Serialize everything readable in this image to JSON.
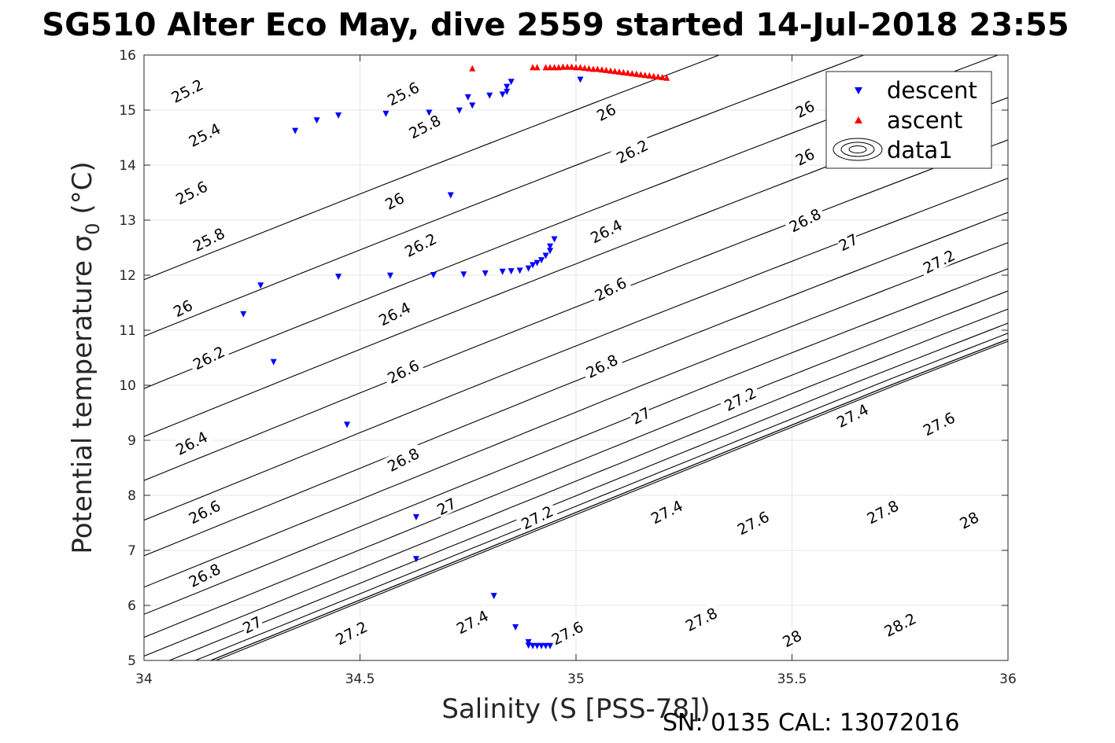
{
  "chart_data": {
    "type": "scatter",
    "title": "SG510 Alter Eco May, dive 2559 started 14-Jul-2018 23:55",
    "xlabel": "Salinity (S [PSS-78])",
    "ylabel_main": "Potential temperature σ",
    "ylabel_sub": "0",
    "ylabel_unit": " (°C)",
    "xlim": [
      34,
      36
    ],
    "ylim": [
      5,
      16
    ],
    "grid": true,
    "legend_position": "top-right",
    "x_tick_labels": [
      "34",
      "34.5",
      "35",
      "35.5",
      "36"
    ],
    "y_tick_labels": [
      "5",
      "6",
      "7",
      "8",
      "9",
      "10",
      "11",
      "12",
      "13",
      "14",
      "15",
      "16"
    ],
    "footer": "SN: 0135  CAL: 13072016",
    "colors": {
      "descent": "#0000ff",
      "ascent": "#ff0000",
      "contour": "#000000",
      "grid": "#e6e6e6"
    },
    "series": [
      {
        "name": "descent",
        "marker": "triangle-down",
        "points": [
          [
            35.01,
            15.55
          ],
          [
            34.85,
            15.51
          ],
          [
            34.84,
            15.42
          ],
          [
            34.84,
            15.33
          ],
          [
            34.83,
            15.28
          ],
          [
            34.8,
            15.26
          ],
          [
            34.75,
            15.23
          ],
          [
            34.76,
            15.08
          ],
          [
            34.73,
            14.99
          ],
          [
            34.66,
            14.95
          ],
          [
            34.56,
            14.93
          ],
          [
            34.45,
            14.9
          ],
          [
            34.4,
            14.81
          ],
          [
            34.35,
            14.62
          ],
          [
            34.71,
            13.45
          ],
          [
            34.95,
            12.65
          ],
          [
            34.94,
            12.52
          ],
          [
            34.94,
            12.44
          ],
          [
            34.93,
            12.35
          ],
          [
            34.92,
            12.27
          ],
          [
            34.91,
            12.22
          ],
          [
            34.9,
            12.18
          ],
          [
            34.89,
            12.12
          ],
          [
            34.87,
            12.08
          ],
          [
            34.85,
            12.07
          ],
          [
            34.83,
            12.06
          ],
          [
            34.79,
            12.03
          ],
          [
            34.74,
            12.01
          ],
          [
            34.67,
            12.0
          ],
          [
            34.57,
            11.99
          ],
          [
            34.45,
            11.97
          ],
          [
            34.27,
            11.81
          ],
          [
            34.23,
            11.29
          ],
          [
            34.3,
            10.42
          ],
          [
            34.47,
            9.28
          ],
          [
            34.63,
            7.6
          ],
          [
            34.63,
            6.84
          ],
          [
            34.81,
            6.17
          ],
          [
            34.86,
            5.6
          ],
          [
            34.89,
            5.33
          ],
          [
            34.89,
            5.27
          ],
          [
            34.9,
            5.26
          ],
          [
            34.91,
            5.26
          ],
          [
            34.92,
            5.26
          ],
          [
            34.93,
            5.26
          ],
          [
            34.94,
            5.26
          ]
        ]
      },
      {
        "name": "ascent",
        "marker": "triangle-up",
        "points": [
          [
            34.76,
            15.76
          ],
          [
            34.9,
            15.78
          ],
          [
            34.91,
            15.78
          ],
          [
            34.93,
            15.78
          ],
          [
            34.94,
            15.78
          ],
          [
            34.95,
            15.78
          ],
          [
            34.96,
            15.78
          ],
          [
            34.97,
            15.79
          ],
          [
            34.98,
            15.79
          ],
          [
            34.99,
            15.79
          ],
          [
            35.0,
            15.78
          ],
          [
            35.01,
            15.78
          ],
          [
            35.02,
            15.77
          ],
          [
            35.03,
            15.76
          ],
          [
            35.04,
            15.75
          ],
          [
            35.05,
            15.75
          ],
          [
            35.06,
            15.74
          ],
          [
            35.07,
            15.73
          ],
          [
            35.08,
            15.72
          ],
          [
            35.09,
            15.71
          ],
          [
            35.1,
            15.7
          ],
          [
            35.11,
            15.69
          ],
          [
            35.12,
            15.68
          ],
          [
            35.13,
            15.67
          ],
          [
            35.14,
            15.66
          ],
          [
            35.15,
            15.65
          ],
          [
            35.16,
            15.64
          ],
          [
            35.17,
            15.63
          ],
          [
            35.18,
            15.62
          ],
          [
            35.19,
            15.61
          ],
          [
            35.2,
            15.6
          ],
          [
            35.21,
            15.59
          ]
        ]
      },
      {
        "name": "data1",
        "marker": "contour"
      }
    ],
    "contour_labels": [
      [
        "25.2",
        34.1,
        15.35
      ],
      [
        "25.4",
        34.14,
        14.55
      ],
      [
        "25.6",
        34.11,
        13.5
      ],
      [
        "25.8",
        34.15,
        12.65
      ],
      [
        "26",
        34.09,
        11.4
      ],
      [
        "26.2",
        34.15,
        10.5
      ],
      [
        "26.4",
        34.11,
        8.95
      ],
      [
        "26.6",
        34.14,
        7.7
      ],
      [
        "26.8",
        34.14,
        6.55
      ],
      [
        "27",
        34.25,
        5.65
      ],
      [
        "27.2",
        34.48,
        5.5
      ],
      [
        "27.4",
        34.76,
        5.7
      ],
      [
        "27.6",
        34.98,
        5.5
      ],
      [
        "27.8",
        35.29,
        5.75
      ],
      [
        "28",
        35.5,
        5.4
      ],
      [
        "28.2",
        35.75,
        5.65
      ],
      [
        "25.6",
        34.6,
        15.3
      ],
      [
        "25.8",
        34.65,
        14.7
      ],
      [
        "26",
        34.58,
        13.35
      ],
      [
        "26.2",
        34.64,
        12.55
      ],
      [
        "26.4",
        34.58,
        11.3
      ],
      [
        "26.6",
        34.6,
        10.25
      ],
      [
        "26.8",
        34.6,
        8.65
      ],
      [
        "27",
        34.7,
        7.8
      ],
      [
        "27.2",
        34.91,
        7.6
      ],
      [
        "27.4",
        35.21,
        7.7
      ],
      [
        "27.6",
        35.41,
        7.5
      ],
      [
        "27.8",
        35.71,
        7.7
      ],
      [
        "28",
        35.91,
        7.55
      ],
      [
        "26",
        35.07,
        14.96
      ],
      [
        "26.2",
        35.13,
        14.25
      ],
      [
        "26.4",
        35.07,
        12.8
      ],
      [
        "26.6",
        35.08,
        11.75
      ],
      [
        "26.8",
        35.06,
        10.35
      ],
      [
        "27",
        35.15,
        9.45
      ],
      [
        "27.2",
        35.38,
        9.75
      ],
      [
        "27.4",
        35.64,
        9.45
      ],
      [
        "27.6",
        35.84,
        9.3
      ],
      [
        "26",
        35.53,
        15.02
      ],
      [
        "26",
        35.53,
        14.15
      ],
      [
        "26.8",
        35.53,
        13.0
      ],
      [
        "27",
        35.63,
        12.6
      ],
      [
        "27.2",
        35.84,
        12.25
      ]
    ]
  }
}
